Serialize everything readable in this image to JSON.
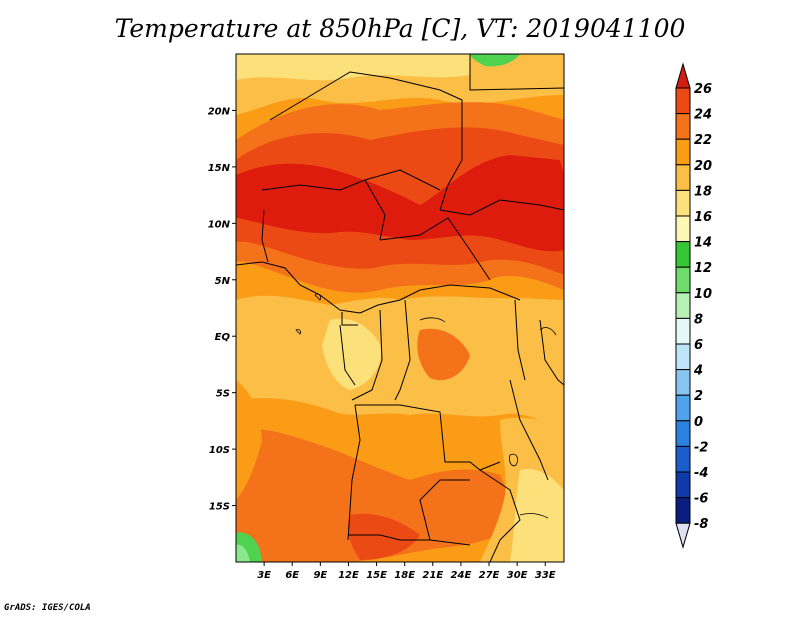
{
  "title": "Temperature at 850hPa [C], VT: 2019041100",
  "footer": "GrADS: IGES/COLA",
  "map": {
    "lon_range": [
      0,
      35
    ],
    "lat_range": [
      -20,
      25
    ],
    "lon_ticks": [
      "3E",
      "6E",
      "9E",
      "12E",
      "15E",
      "18E",
      "21E",
      "24E",
      "27E",
      "30E",
      "33E"
    ],
    "lat_ticks": [
      "20N",
      "15N",
      "10N",
      "5N",
      "EQ",
      "5S",
      "10S",
      "15S"
    ],
    "fill_colors": {
      "c16_18": "#fce07a",
      "c18_20": "#fbbf48",
      "c20_22": "#fa9c16",
      "c22_24": "#f4721a",
      "c24_26": "#ec4a14",
      "c26_28": "#dd1c0e",
      "c12_14": "#4fd24f",
      "c10_12": "#8de88d"
    }
  },
  "colorbar": {
    "levels": [
      "26",
      "24",
      "22",
      "20",
      "18",
      "16",
      "14",
      "12",
      "10",
      "8",
      "6",
      "4",
      "2",
      "0",
      "-2",
      "-4",
      "-6",
      "-8"
    ],
    "colors": [
      "#d21e0e",
      "#ec4a14",
      "#f4721a",
      "#fa9c16",
      "#fbbf48",
      "#fce07a",
      "#fdf7b6",
      "#36c834",
      "#6ddc6d",
      "#b6f0b4",
      "#e4f8f6",
      "#bde4f8",
      "#88c4f2",
      "#4fa2ec",
      "#2b82de",
      "#1a5ecb",
      "#0f3aaa",
      "#0a1e80",
      "#e0e0f4"
    ]
  }
}
